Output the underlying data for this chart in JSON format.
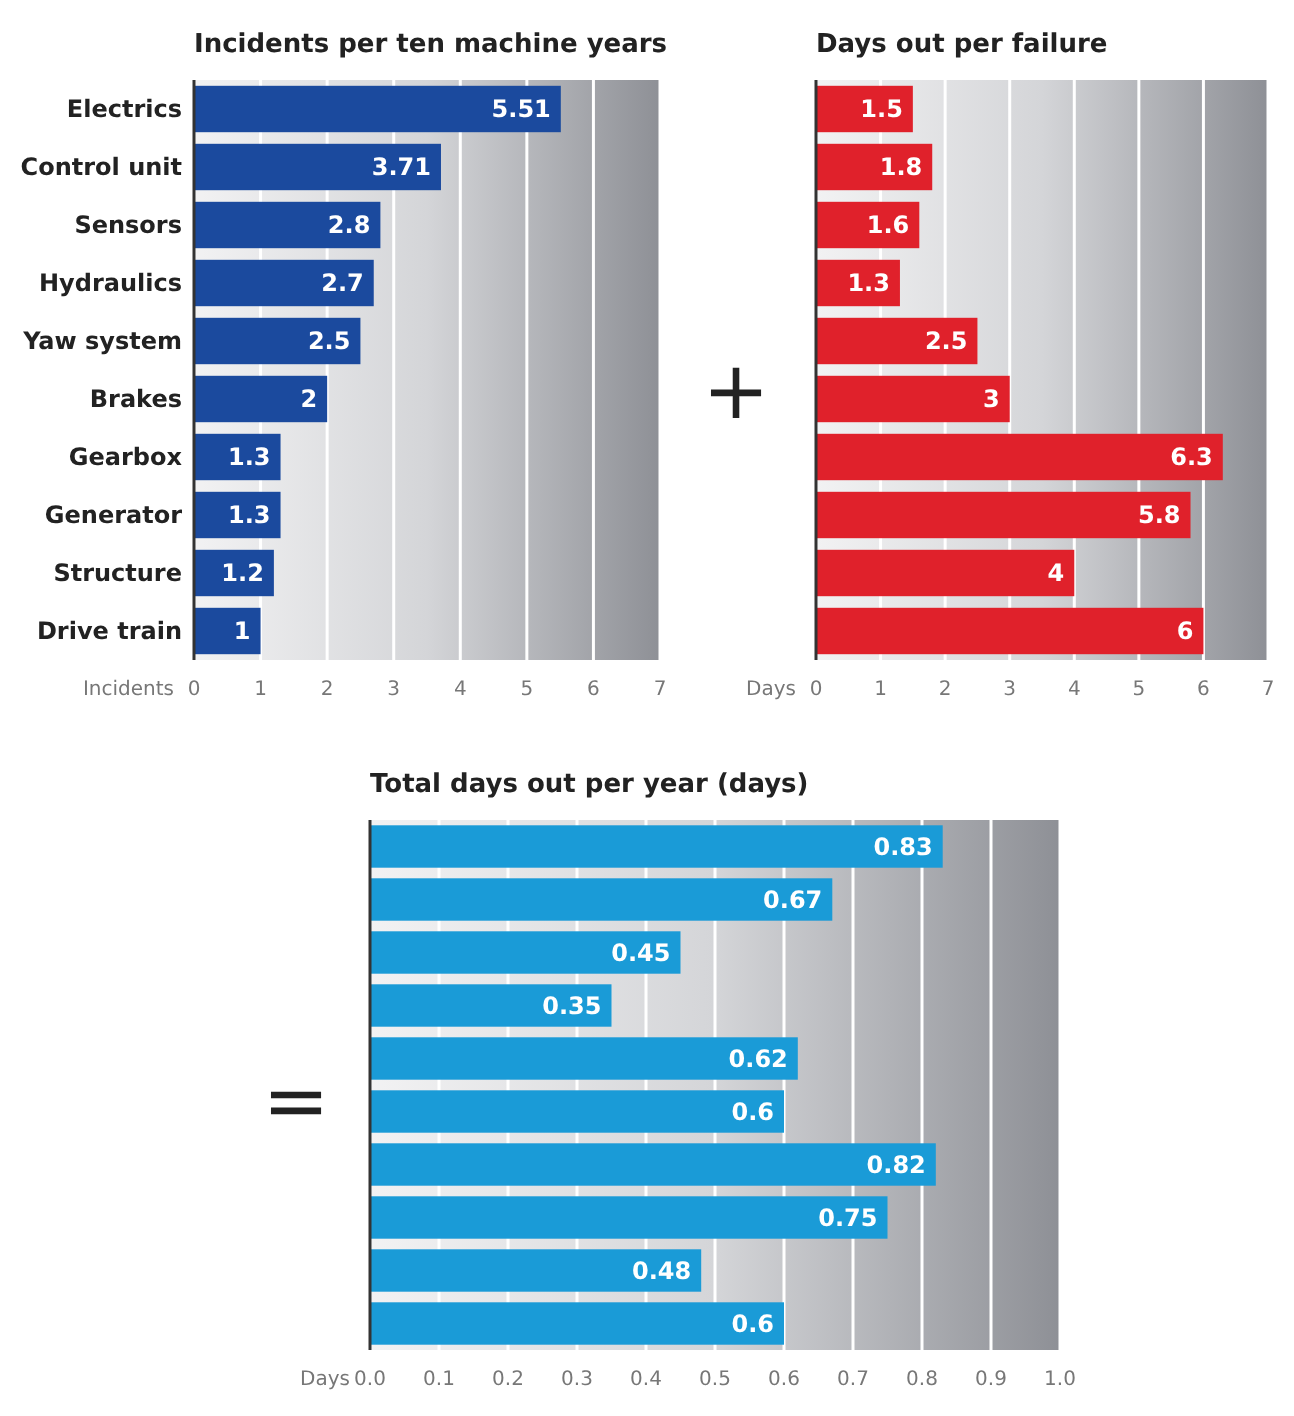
{
  "chart_data": [
    {
      "type": "bar",
      "orientation": "horizontal",
      "title": "Incidents per ten machine years",
      "xlabel": "Incidents",
      "categories": [
        "Electrics",
        "Control unit",
        "Sensors",
        "Hydraulics",
        "Yaw system",
        "Brakes",
        "Gearbox",
        "Generator",
        "Structure",
        "Drive train"
      ],
      "values": [
        5.51,
        3.71,
        2.8,
        2.7,
        2.5,
        2,
        1.3,
        1.3,
        1.2,
        1
      ],
      "color": "#1b4a9e",
      "xlim": [
        0,
        7
      ],
      "xticks": [
        0,
        1,
        2,
        3,
        4,
        5,
        6,
        7
      ],
      "grid": "x",
      "data_labels": true,
      "annotations": [
        "+"
      ]
    },
    {
      "type": "bar",
      "orientation": "horizontal",
      "title": "Days out per failure",
      "xlabel": "Days",
      "categories": [
        null,
        null,
        null,
        null,
        null,
        null,
        null,
        null,
        null,
        null
      ],
      "values": [
        1.5,
        1.8,
        1.6,
        1.3,
        2.5,
        3,
        6.3,
        5.8,
        4,
        6
      ],
      "color": "#e0212b",
      "xlim": [
        0,
        7
      ],
      "xticks": [
        0,
        1,
        2,
        3,
        4,
        5,
        6,
        7
      ],
      "grid": "x",
      "data_labels": true
    },
    {
      "type": "bar",
      "orientation": "horizontal",
      "title": "Total days out per year (days)",
      "xlabel": "Days",
      "categories": [
        null,
        null,
        null,
        null,
        null,
        null,
        null,
        null,
        null,
        null
      ],
      "values": [
        0.83,
        0.67,
        0.45,
        0.35,
        0.62,
        0.6,
        0.82,
        0.75,
        0.48,
        0.6
      ],
      "color": "#1a9bd7",
      "xlim": [
        0,
        1
      ],
      "xticks": [
        {
          "value": 0,
          "label": "0.0"
        },
        {
          "value": 0.1,
          "label": "0.1"
        },
        {
          "value": 0.2,
          "label": "0.2"
        },
        {
          "value": 0.3,
          "label": "0.3"
        },
        {
          "value": 0.4,
          "label": "0.4"
        },
        {
          "value": 0.5,
          "label": "0.5"
        },
        {
          "value": 0.6,
          "label": "0.6"
        },
        {
          "value": 0.7,
          "label": "0.7"
        },
        {
          "value": 0.8,
          "label": "0.8"
        },
        {
          "value": 0.9,
          "label": "0.9"
        },
        {
          "value": 1,
          "label": "1.0"
        }
      ],
      "grid": "x",
      "data_labels": true,
      "annotations": [
        "="
      ]
    }
  ]
}
